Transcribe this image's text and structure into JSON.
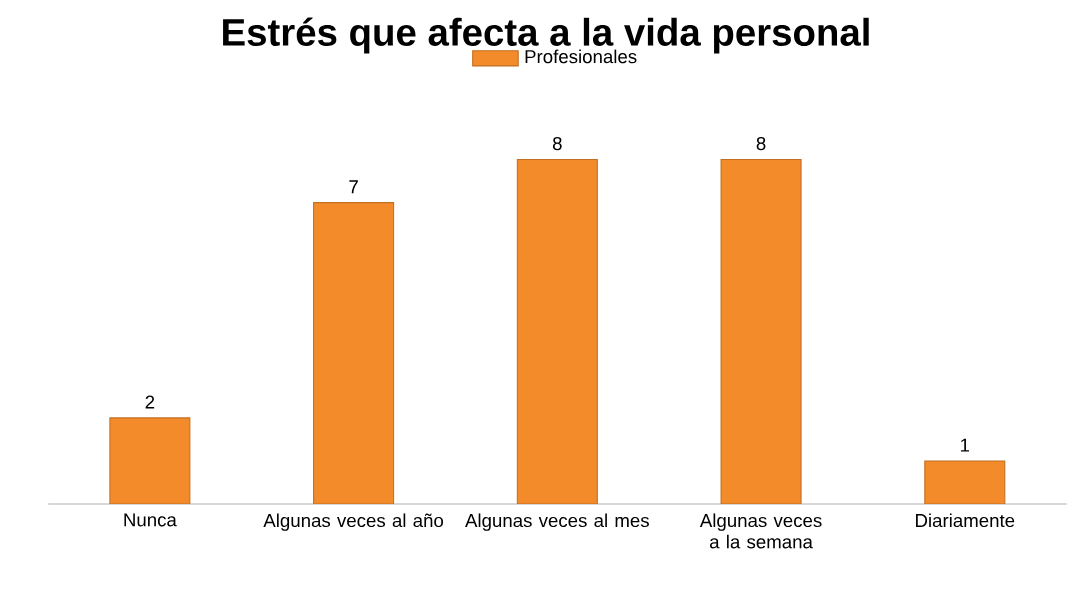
{
  "chart_data": {
    "type": "bar",
    "title": "Estrés que afecta a la vida personal",
    "categories": [
      "Nunca",
      "Algunas veces al año",
      "Algunas veces al mes",
      "Algunas veces a la semana",
      "Diariamente"
    ],
    "series": [
      {
        "name": "Profesionales",
        "color": "#f38b2a",
        "values": [
          2,
          7,
          8,
          8,
          1
        ]
      }
    ],
    "data_labels": true,
    "legend": "top"
  }
}
